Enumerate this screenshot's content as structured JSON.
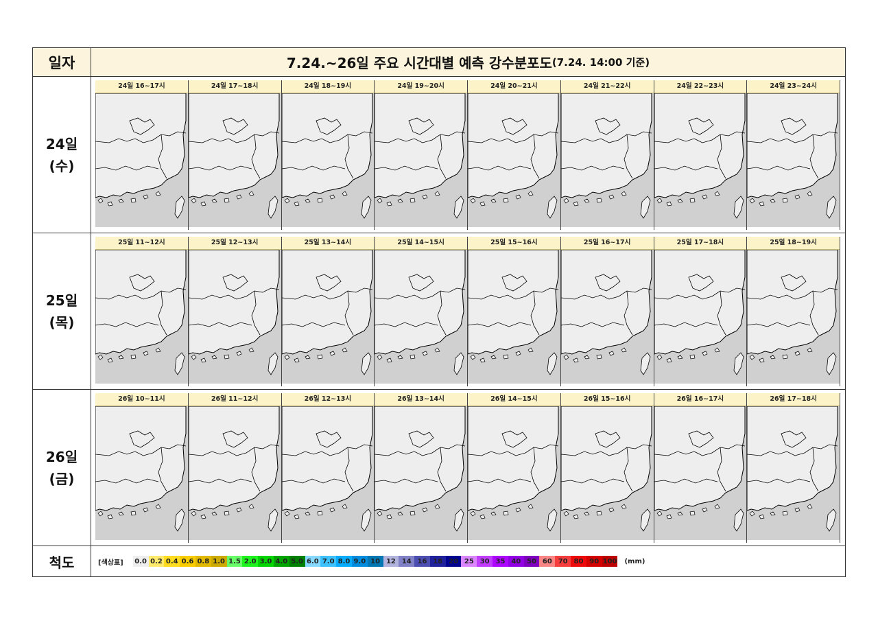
{
  "header": {
    "left_label": "일자",
    "title_main": "7.24.~26일 주요 시간대별 예측 강수분포도",
    "title_sub": "(7.24. 14:00 기준)"
  },
  "rows": [
    {
      "day": "24일",
      "weekday": "(수)",
      "panels": [
        "24일 16~17시",
        "24일 17~18시",
        "24일 18~19시",
        "24일 19~20시",
        "24일 20~21시",
        "24일 21~22시",
        "24일 22~23시",
        "24일 23~24시"
      ]
    },
    {
      "day": "25일",
      "weekday": "(목)",
      "panels": [
        "25일 11~12시",
        "25일 12~13시",
        "25일 13~14시",
        "25일 14~15시",
        "25일 15~16시",
        "25일 16~17시",
        "25일 17~18시",
        "25일 18~19시"
      ]
    },
    {
      "day": "26일",
      "weekday": "(금)",
      "panels": [
        "26일 10~11시",
        "26일 11~12시",
        "26일 12~13시",
        "26일 13~14시",
        "26일 14~15시",
        "26일 15~16시",
        "26일 16~17시",
        "26일 17~18시"
      ]
    }
  ],
  "scale": {
    "label": "척도",
    "title": "[색상표]",
    "unit": "(mm)",
    "steps": [
      {
        "v": "0.0",
        "c": "#eeeeee"
      },
      {
        "v": "0.2",
        "c": "#ffea6e"
      },
      {
        "v": "0.4",
        "c": "#ffdc1f"
      },
      {
        "v": "0.6",
        "c": "#f9cd00"
      },
      {
        "v": "0.8",
        "c": "#e0b900"
      },
      {
        "v": "1.0",
        "c": "#ccaa00"
      },
      {
        "v": "1.5",
        "c": "#69fc69"
      },
      {
        "v": "2.0",
        "c": "#1ef31e"
      },
      {
        "v": "3.0",
        "c": "#00d500"
      },
      {
        "v": "4.0",
        "c": "#00a400"
      },
      {
        "v": "5.0",
        "c": "#008000"
      },
      {
        "v": "6.0",
        "c": "#87d9ff"
      },
      {
        "v": "7.0",
        "c": "#3ec1ff"
      },
      {
        "v": "8.0",
        "c": "#07abff"
      },
      {
        "v": "9.0",
        "c": "#008dde"
      },
      {
        "v": "10",
        "c": "#0077b3"
      },
      {
        "v": "12",
        "c": "#b3b4de"
      },
      {
        "v": "14",
        "c": "#8081c7"
      },
      {
        "v": "16",
        "c": "#4c4eb1"
      },
      {
        "v": "18",
        "c": "#1f219d"
      },
      {
        "v": "20",
        "c": "#000390"
      },
      {
        "v": "25",
        "c": "#da87ff"
      },
      {
        "v": "30",
        "c": "#c23eff"
      },
      {
        "v": "35",
        "c": "#ad07ff"
      },
      {
        "v": "40",
        "c": "#9200e4"
      },
      {
        "v": "50",
        "c": "#7f00bf"
      },
      {
        "v": "60",
        "c": "#fa8585"
      },
      {
        "v": "70",
        "c": "#f63e3e"
      },
      {
        "v": "80",
        "c": "#ee0b0b"
      },
      {
        "v": "90",
        "c": "#d50000"
      },
      {
        "v": "100",
        "c": "#bf0000"
      }
    ]
  },
  "map_colors": {
    "land": "#eeeeee",
    "sea": "#d0d0d0",
    "border": "#000000"
  }
}
